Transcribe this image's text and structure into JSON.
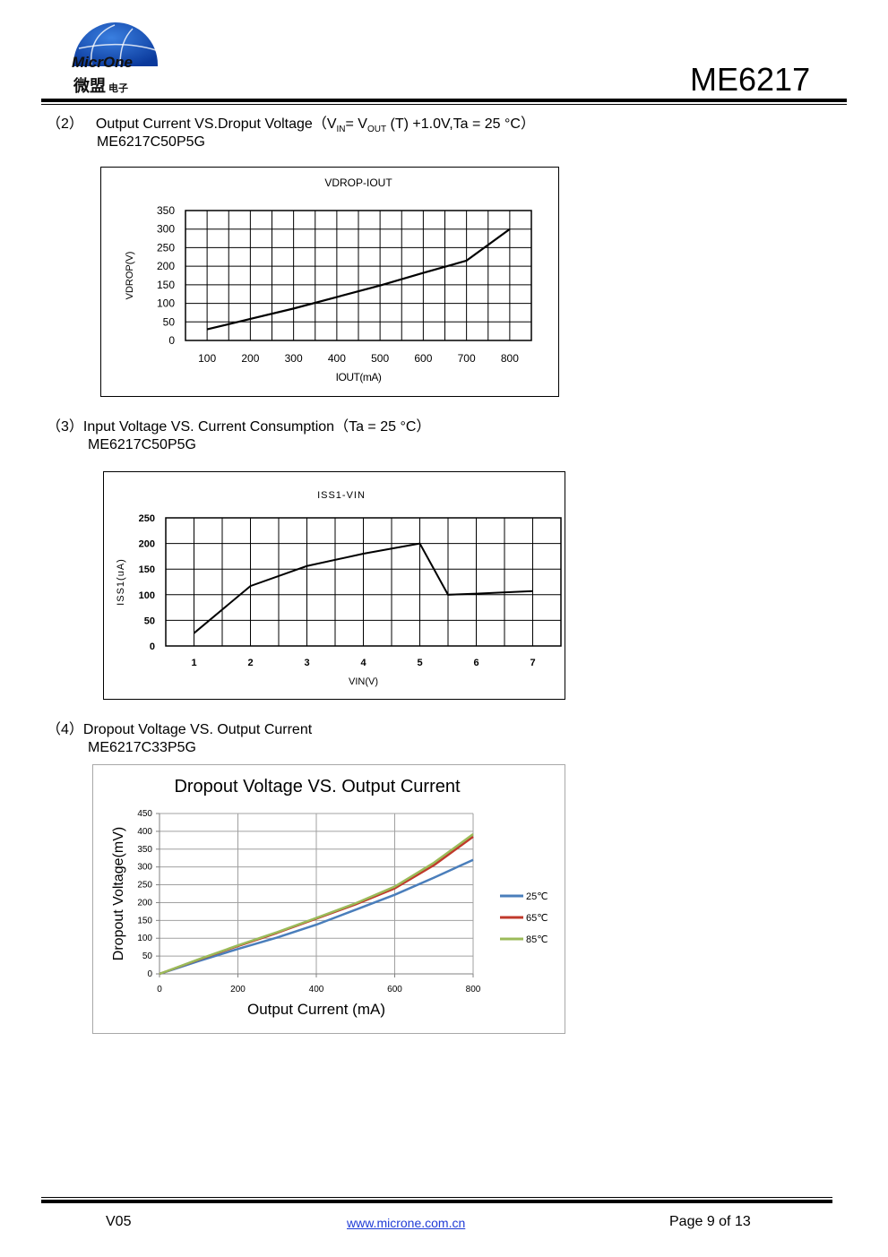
{
  "header": {
    "logo_text_en": "MicrOne",
    "logo_text_cn": "微盟",
    "logo_text_cn_small": "电子",
    "part_number": "ME6217"
  },
  "sections": [
    {
      "num": "（2）",
      "title_pre": "Output Current VS.Droput Voltage（V",
      "sub_in": "IN",
      "title_mid": "= V",
      "sub_out": "OUT",
      "title_post": " (T) +1.0V,Ta = 25 °C）",
      "model": "ME6217C50P5G"
    },
    {
      "num": "（3）",
      "title": "Input Voltage VS. Current Consumption（Ta = 25 °C）",
      "model": "ME6217C50P5G"
    },
    {
      "num": "（4）",
      "title": "Dropout Voltage VS. Output Current",
      "model": "ME6217C33P5G"
    }
  ],
  "chart_data": [
    {
      "type": "line",
      "title": "VDROP-IOUT",
      "xlabel": "IOUT(mA)",
      "ylabel": "VDROP(V)",
      "xlim": [
        50,
        850
      ],
      "ylim": [
        0,
        350
      ],
      "xticks": [
        100,
        200,
        300,
        400,
        500,
        600,
        700,
        800
      ],
      "yticks": [
        0,
        50,
        100,
        150,
        200,
        250,
        300,
        350
      ],
      "x": [
        100,
        200,
        300,
        400,
        500,
        600,
        700,
        800
      ],
      "y": [
        30,
        58,
        86,
        117,
        148,
        182,
        215,
        300
      ]
    },
    {
      "type": "line",
      "title": "ISS1-VIN",
      "xlabel": "VIN(V)",
      "ylabel": "ISS1(uA)",
      "xlim": [
        0.5,
        7.5
      ],
      "ylim": [
        0,
        250
      ],
      "xticks": [
        1,
        2,
        3,
        4,
        5,
        6,
        7
      ],
      "yticks": [
        0,
        50,
        100,
        150,
        200,
        250
      ],
      "x": [
        1,
        2,
        3,
        4,
        5,
        5.5,
        6,
        7
      ],
      "y": [
        25,
        117,
        156,
        180,
        200,
        100,
        102,
        107
      ]
    },
    {
      "type": "line",
      "title": "Dropout Voltage VS. Output Current",
      "xlabel": "Output Current (mA)",
      "ylabel": "Dropout Voltage(mV)",
      "xlim": [
        0,
        800
      ],
      "ylim": [
        0,
        450
      ],
      "xticks": [
        0,
        200,
        400,
        600,
        800
      ],
      "yticks": [
        0,
        50,
        100,
        150,
        200,
        250,
        300,
        350,
        400,
        450
      ],
      "x": [
        0,
        100,
        200,
        300,
        400,
        500,
        600,
        700,
        800
      ],
      "series": [
        {
          "name": "25℃",
          "color": "#4a7ebb",
          "values": [
            0,
            36,
            70,
            102,
            138,
            180,
            222,
            270,
            320
          ]
        },
        {
          "name": "65℃",
          "color": "#c0392b",
          "values": [
            0,
            40,
            78,
            115,
            155,
            195,
            240,
            305,
            385
          ]
        },
        {
          "name": "85℃",
          "color": "#9bbb59",
          "values": [
            0,
            41,
            80,
            117,
            157,
            198,
            245,
            312,
            392
          ]
        }
      ]
    }
  ],
  "footer": {
    "version": "V05",
    "website": "www.microne.com.cn",
    "page": "Page 9 of 13"
  }
}
